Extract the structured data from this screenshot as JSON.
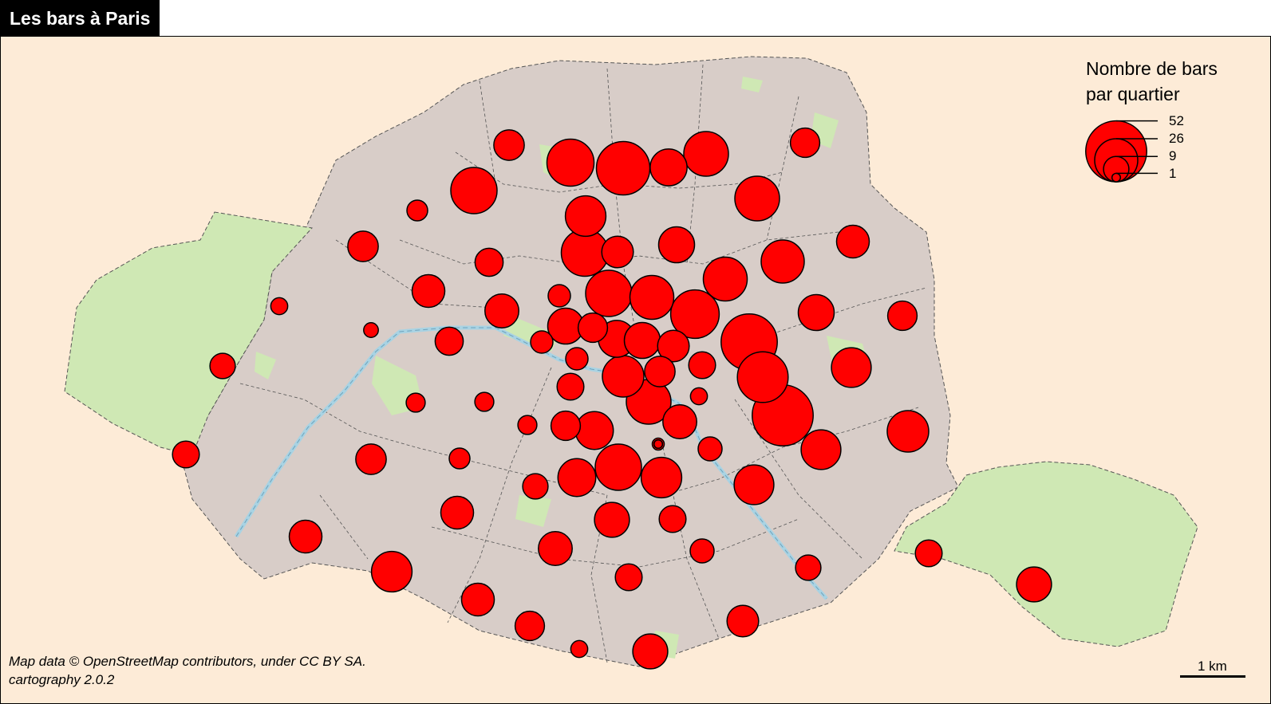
{
  "title": "Les bars à Paris",
  "legend": {
    "title_line1": "Nombre de bars",
    "title_line2": "par quartier",
    "values": [
      "52",
      "26",
      "9",
      "1"
    ]
  },
  "credits": {
    "line1": "Map data © OpenStreetMap contributors, under CC BY SA.",
    "line2": "cartography 2.0.2"
  },
  "scale_label": "1 km",
  "colors": {
    "background": "#fdebd7",
    "city": "#d8cdc8",
    "parks": "#cfe8b4",
    "river": "#a9d3e3",
    "symbol": "#ff0000"
  },
  "bars_by_quartier": [
    52,
    44,
    40,
    36,
    33,
    31,
    31,
    30,
    30,
    30,
    28,
    28,
    28,
    27,
    27,
    26,
    24,
    24,
    23,
    23,
    23,
    22,
    22,
    22,
    20,
    20,
    19,
    19,
    18,
    18,
    18,
    18,
    17,
    17,
    17,
    16,
    16,
    16,
    15,
    15,
    15,
    15,
    15,
    14,
    14,
    14,
    13,
    13,
    13,
    13,
    12,
    12,
    12,
    12,
    12,
    11,
    11,
    10,
    10,
    10,
    10,
    10,
    10,
    9,
    9,
    9,
    8,
    8,
    7,
    7,
    7,
    6,
    6,
    5,
    5,
    5,
    4,
    4,
    4,
    3,
    2,
    1,
    1
  ]
}
